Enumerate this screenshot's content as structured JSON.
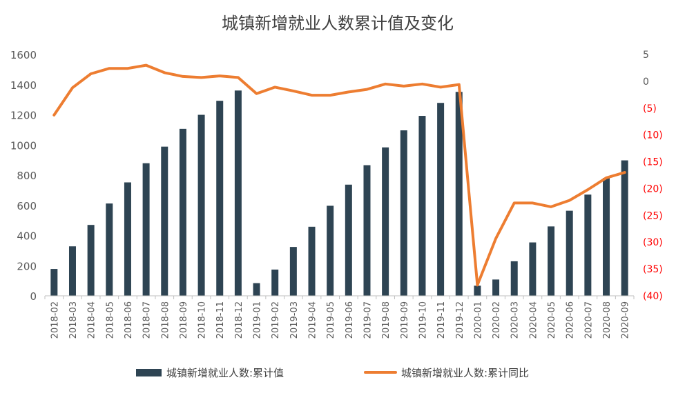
{
  "chart_data": {
    "type": "bar",
    "title": "城镇新增就业人数累计值及变化",
    "categories": [
      "2018-02",
      "2018-03",
      "2018-04",
      "2018-05",
      "2018-06",
      "2018-07",
      "2018-08",
      "2018-09",
      "2018-10",
      "2018-11",
      "2018-12",
      "2019-01",
      "2019-02",
      "2019-03",
      "2019-04",
      "2019-05",
      "2019-06",
      "2019-07",
      "2019-08",
      "2019-09",
      "2019-10",
      "2019-11",
      "2019-12",
      "2020-01",
      "2020-02",
      "2020-03",
      "2020-04",
      "2020-05",
      "2020-06",
      "2020-07",
      "2020-08",
      "2020-09"
    ],
    "series": [
      {
        "name": "城镇新增就业人数:累计值",
        "type": "bar",
        "axis": "left",
        "color": "#2e4453",
        "values": [
          178,
          328,
          470,
          612,
          752,
          879,
          989,
          1107,
          1200,
          1293,
          1361,
          84,
          174,
          324,
          458,
          597,
          737,
          866,
          984,
          1097,
          1193,
          1279,
          1352,
          67,
          108,
          229,
          354,
          460,
          564,
          671,
          781,
          898
        ]
      },
      {
        "name": "城镇新增就业人数:累计同比",
        "type": "line",
        "axis": "right",
        "color": "#ed7d31",
        "values": [
          -6.3,
          -1.2,
          1.4,
          2.4,
          2.4,
          3.0,
          1.6,
          0.9,
          0.7,
          1.0,
          0.7,
          -2.3,
          -1.1,
          -1.8,
          -2.6,
          -2.6,
          -2.0,
          -1.5,
          -0.5,
          -0.9,
          -0.5,
          -1.1,
          -0.6,
          -38.0,
          -29.3,
          -22.7,
          -22.7,
          -23.4,
          -22.2,
          -20.2,
          -18.0,
          -17.0
        ]
      }
    ],
    "yaxis_left": {
      "min": 0,
      "max": 1600,
      "ticks": [
        "0",
        "200",
        "400",
        "600",
        "800",
        "1000",
        "1200",
        "1400",
        "1600"
      ]
    },
    "yaxis_right": {
      "min": -40,
      "max": 5,
      "ticks": [
        {
          "value": 5,
          "label": "5",
          "color": "#595959"
        },
        {
          "value": 0,
          "label": "0",
          "color": "#595959"
        },
        {
          "value": -5,
          "label": "(5)",
          "color": "#ff0000"
        },
        {
          "value": -10,
          "label": "(10)",
          "color": "#ff0000"
        },
        {
          "value": -15,
          "label": "(15)",
          "color": "#ff0000"
        },
        {
          "value": -20,
          "label": "(20)",
          "color": "#ff0000"
        },
        {
          "value": -25,
          "label": "(25)",
          "color": "#ff0000"
        },
        {
          "value": -30,
          "label": "(30)",
          "color": "#ff0000"
        },
        {
          "value": -35,
          "label": "(35)",
          "color": "#ff0000"
        },
        {
          "value": -40,
          "label": "(40)",
          "color": "#ff0000"
        }
      ]
    },
    "grid": false,
    "legend_position": "bottom"
  }
}
